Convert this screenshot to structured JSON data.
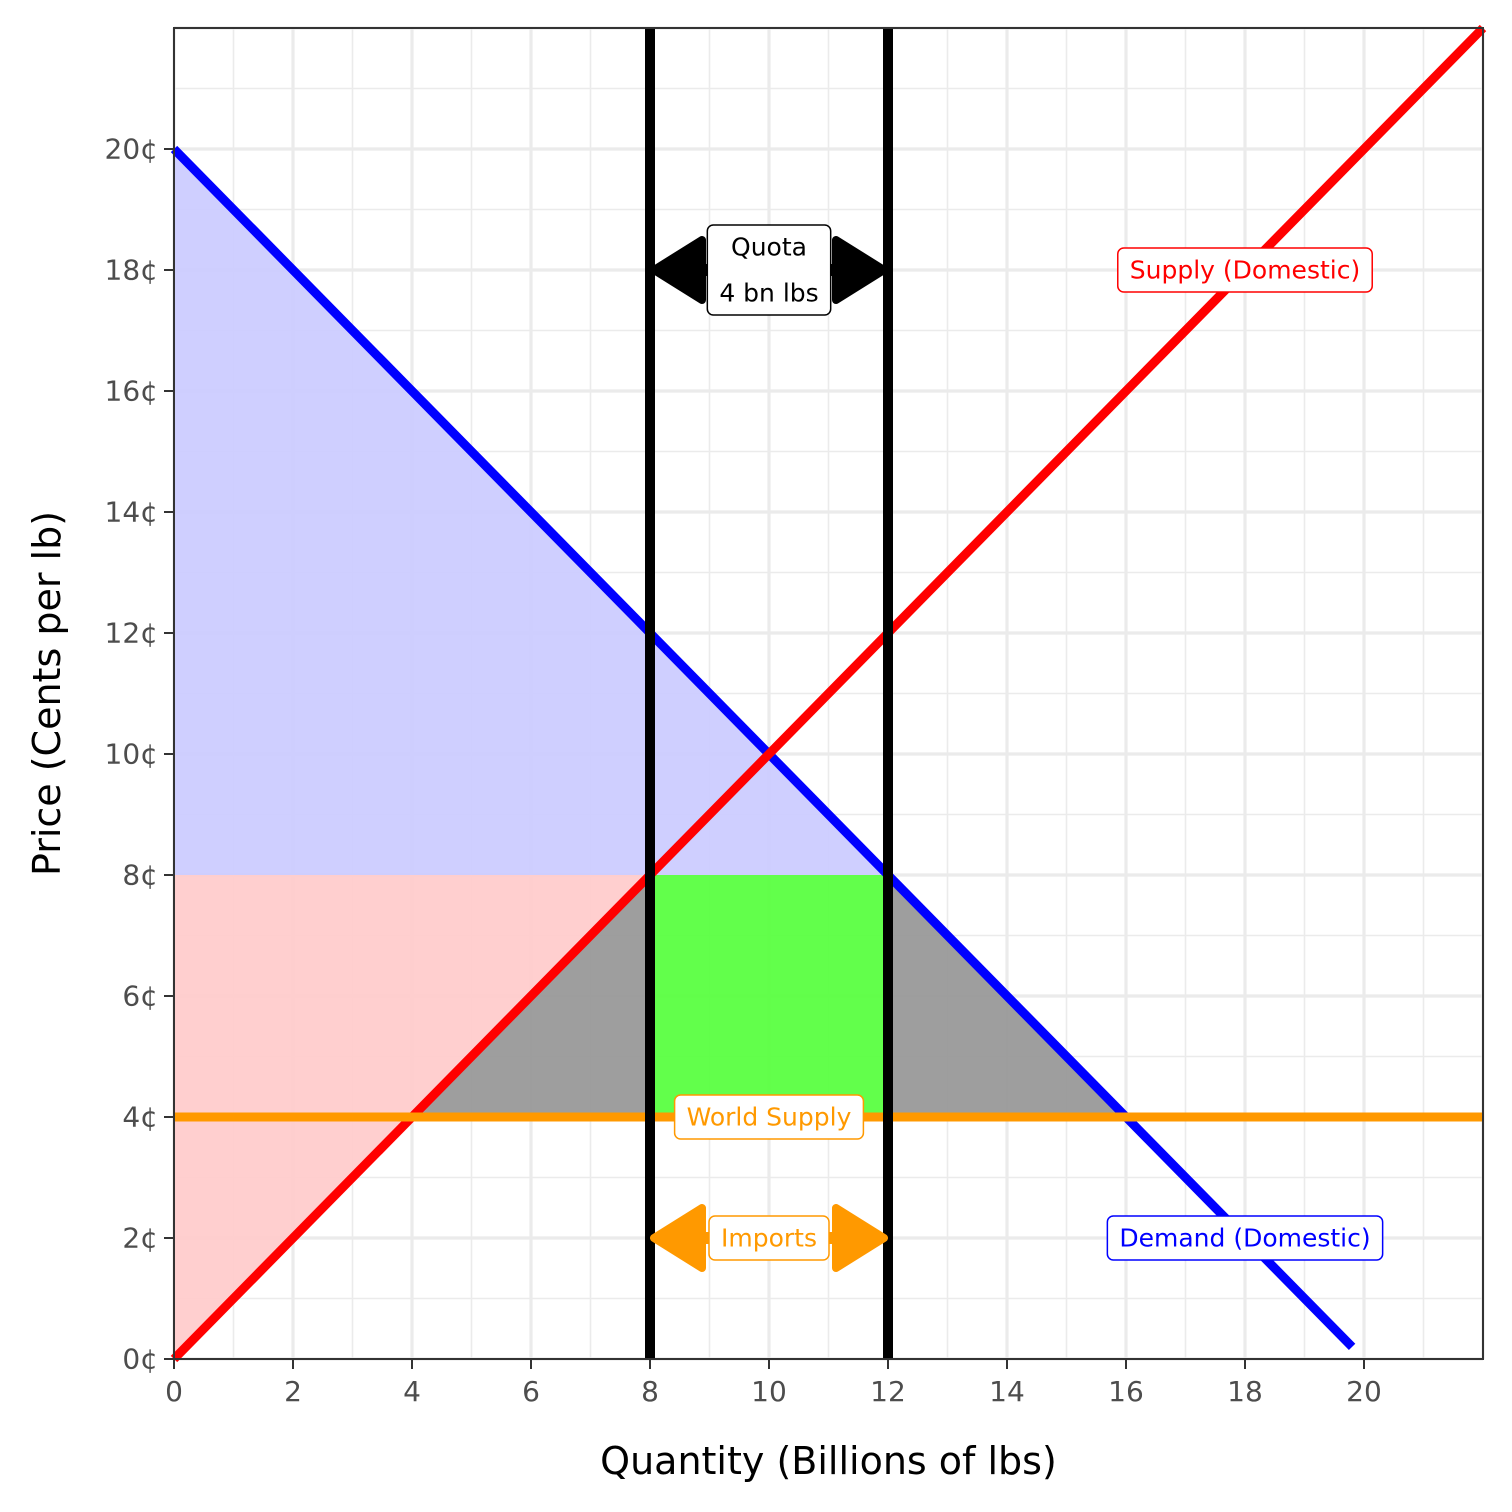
{
  "chart_data": {
    "type": "line",
    "xlabel": "Quantity (Billions of lbs)",
    "ylabel": "Price (Cents per lb)",
    "xlim": [
      0,
      22
    ],
    "ylim": [
      0,
      22
    ],
    "x_ticks": [
      0,
      2,
      4,
      6,
      8,
      10,
      12,
      14,
      16,
      18,
      20
    ],
    "x_tick_labels": [
      "0",
      "2",
      "4",
      "6",
      "8",
      "10",
      "12",
      "14",
      "16",
      "18",
      "20"
    ],
    "y_ticks": [
      0,
      2,
      4,
      6,
      8,
      10,
      12,
      14,
      16,
      18,
      20
    ],
    "y_tick_labels": [
      "0¢",
      "2¢",
      "4¢",
      "6¢",
      "8¢",
      "10¢",
      "12¢",
      "14¢",
      "16¢",
      "18¢",
      "20¢"
    ],
    "grid": true,
    "series": [
      {
        "name": "Demand (Domestic)",
        "color": "#0000ff",
        "x": [
          0,
          19.8
        ],
        "y": [
          20,
          0.2
        ]
      },
      {
        "name": "Supply (Domestic)",
        "color": "#ff0000",
        "x": [
          0,
          22
        ],
        "y": [
          0,
          22
        ]
      },
      {
        "name": "World Supply",
        "color": "#ff9900",
        "x": [
          0,
          22
        ],
        "y": [
          4,
          4
        ]
      }
    ],
    "vertical_lines": [
      8,
      12
    ],
    "regions": [
      {
        "fill": "#ccccff",
        "points": [
          [
            0,
            20
          ],
          [
            12,
            8
          ],
          [
            0,
            8
          ]
        ]
      },
      {
        "fill": "#ffcccc",
        "points": [
          [
            0,
            0
          ],
          [
            8,
            8
          ],
          [
            0,
            8
          ]
        ]
      },
      {
        "fill": "#999999",
        "points": [
          [
            4,
            4
          ],
          [
            8,
            8
          ],
          [
            8,
            4
          ]
        ]
      },
      {
        "fill": "#999999",
        "points": [
          [
            12,
            8
          ],
          [
            16,
            4
          ],
          [
            12,
            4
          ]
        ]
      },
      {
        "fill": "#5aff41",
        "points": [
          [
            8,
            8
          ],
          [
            12,
            8
          ],
          [
            12,
            4
          ],
          [
            8,
            4
          ]
        ]
      }
    ],
    "annotations": [
      {
        "text_lines": [
          "Quota",
          "4 bn lbs"
        ],
        "x": 10,
        "y": 18,
        "color": "#000000",
        "arrow": [
          8,
          12
        ]
      },
      {
        "text_lines": [
          "Imports"
        ],
        "x": 10,
        "y": 2,
        "color": "#ff9900",
        "arrow": [
          8,
          12
        ]
      },
      {
        "text_lines": [
          "World Supply"
        ],
        "x": 10,
        "y": 4,
        "color": "#ff9900"
      },
      {
        "text_lines": [
          "Supply (Domestic)"
        ],
        "x": 18,
        "y": 18,
        "color": "#ff0000"
      },
      {
        "text_lines": [
          "Demand (Domestic)"
        ],
        "x": 18,
        "y": 2,
        "color": "#0000ff"
      }
    ]
  }
}
